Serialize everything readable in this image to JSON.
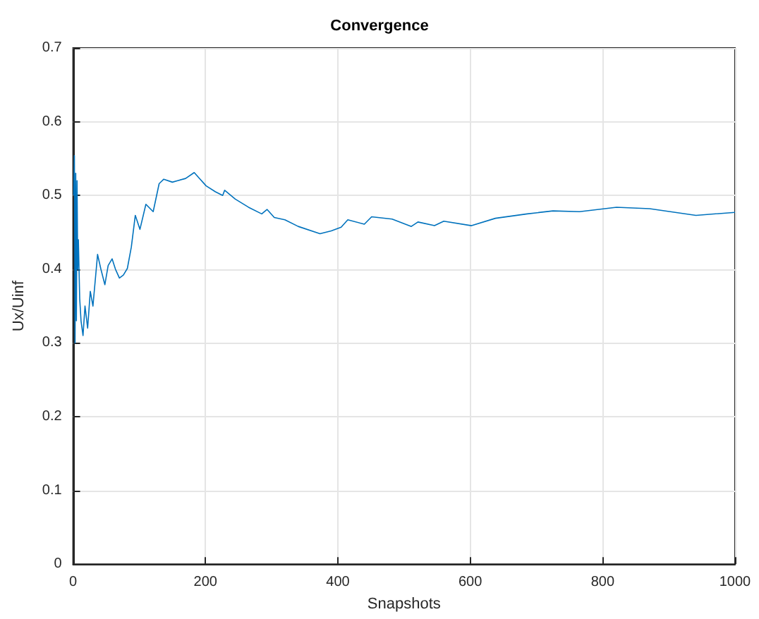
{
  "chart_data": {
    "type": "line",
    "title": "Convergence",
    "xlabel": "Snapshots",
    "ylabel": "Ux/Uinf",
    "xlim": [
      0,
      1000
    ],
    "ylim": [
      0,
      0.7
    ],
    "xticks": [
      0,
      200,
      400,
      600,
      800,
      1000
    ],
    "yticks": [
      0,
      0.1,
      0.2,
      0.3,
      0.4,
      0.5,
      0.6,
      0.7
    ],
    "grid": true,
    "marker": "none",
    "line_style": "solid",
    "series": [
      {
        "color": "#0072bd",
        "x": [
          1,
          2,
          3,
          4,
          5,
          6,
          7,
          8,
          10,
          12,
          15,
          18,
          22,
          26,
          30,
          34,
          37,
          42,
          48,
          53,
          59,
          64,
          70,
          76,
          82,
          88,
          94,
          101,
          110,
          121,
          130,
          137,
          150,
          158,
          170,
          183,
          192,
          201,
          215,
          226,
          229,
          245,
          265,
          285,
          293,
          304,
          320,
          340,
          373,
          390,
          405,
          415,
          440,
          451,
          482,
          511,
          521,
          546,
          560,
          602,
          638,
          686,
          725,
          765,
          821,
          871,
          941,
          1000
        ],
        "values": [
          0.5,
          0.554,
          0.3,
          0.53,
          0.33,
          0.52,
          0.4,
          0.44,
          0.36,
          0.33,
          0.31,
          0.35,
          0.32,
          0.37,
          0.35,
          0.39,
          0.42,
          0.4,
          0.379,
          0.405,
          0.414,
          0.4,
          0.388,
          0.392,
          0.401,
          0.43,
          0.473,
          0.454,
          0.488,
          0.478,
          0.516,
          0.522,
          0.518,
          0.52,
          0.523,
          0.531,
          0.522,
          0.513,
          0.505,
          0.5,
          0.507,
          0.495,
          0.484,
          0.475,
          0.481,
          0.47,
          0.467,
          0.458,
          0.448,
          0.452,
          0.457,
          0.467,
          0.461,
          0.471,
          0.468,
          0.458,
          0.464,
          0.459,
          0.465,
          0.459,
          0.469,
          0.475,
          0.479,
          0.478,
          0.484,
          0.482,
          0.473,
          0.477
        ]
      }
    ]
  }
}
